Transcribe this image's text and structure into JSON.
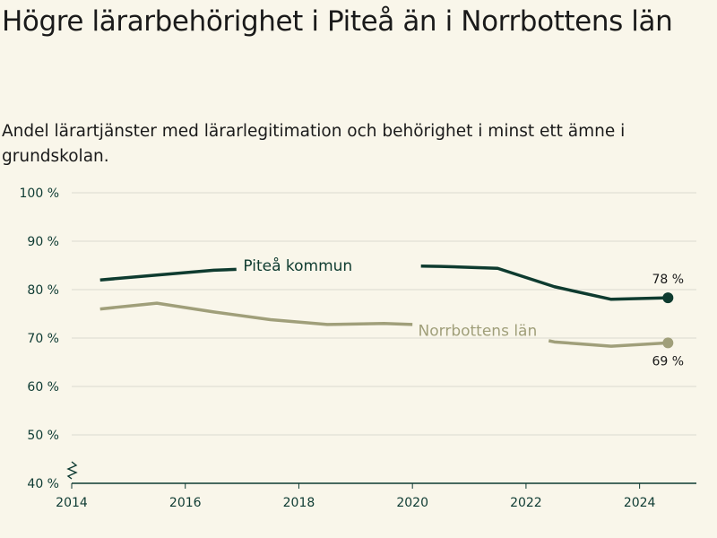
{
  "title": "Högre lärarbehörighet i Piteå än i Norrbottens län",
  "subtitle": "Andel lärartjänster med lärarlegitimation och behörighet i minst ett ämne i grundskolan.",
  "colors": {
    "pitea": "#0e3b2f",
    "norrbotten": "#a09f7a",
    "grid": "#dcdad0",
    "axis": "#0e3b33"
  },
  "chart_data": {
    "type": "line",
    "title": "Högre lärarbehörighet i Piteå än i Norrbottens län",
    "subtitle": "Andel lärartjänster med lärarlegitimation och behörighet i minst ett ämne i grundskolan.",
    "xlim": [
      2014,
      2025
    ],
    "ylim": [
      40,
      100
    ],
    "y_ticks": [
      40,
      50,
      60,
      70,
      80,
      90,
      100
    ],
    "y_tick_labels": [
      "40 %",
      "50 %",
      "60 %",
      "70 %",
      "80 %",
      "90 %",
      "100 %"
    ],
    "x_ticks": [
      2014,
      2016,
      2018,
      2020,
      2022,
      2024
    ],
    "x_tick_labels": [
      "2014",
      "2016",
      "2018",
      "2020",
      "2022",
      "2024"
    ],
    "grid": true,
    "axis_break": true,
    "series": [
      {
        "name": "Piteå kommun",
        "x": [
          2014.5,
          2015.5,
          2016.5,
          2017.5,
          2018.5,
          2019.5,
          2020.5,
          2021.5,
          2022.5,
          2023.5,
          2024.5
        ],
        "values": [
          82,
          83,
          84,
          84.5,
          84.5,
          85,
          84.8,
          84.4,
          80.6,
          78,
          78.3
        ],
        "end_label": "78 %"
      },
      {
        "name": "Norrbottens län",
        "x": [
          2014.5,
          2015.5,
          2016.5,
          2017.5,
          2018.5,
          2019.5,
          2020.5,
          2021.5,
          2022.5,
          2023.5,
          2024.5
        ],
        "values": [
          76,
          77.2,
          75.4,
          73.8,
          72.8,
          73,
          72.6,
          71.6,
          69.2,
          68.3,
          69
        ],
        "end_label": "69 %"
      }
    ]
  }
}
